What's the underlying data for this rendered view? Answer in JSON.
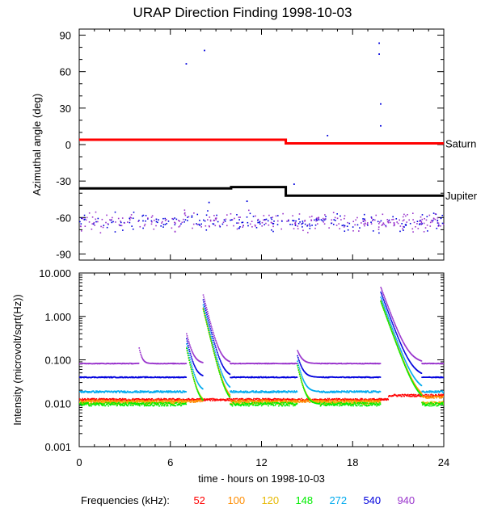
{
  "title": "URAP Direction Finding  1998-10-03",
  "xaxis": {
    "label": "time - hours on 1998-10-03",
    "ticks": [
      0,
      6,
      12,
      18,
      24
    ],
    "range": [
      0,
      24
    ]
  },
  "legend_title": "Frequencies (kHz):",
  "frequencies": [
    {
      "label": "52",
      "color": "#ff0000"
    },
    {
      "label": "100",
      "color": "#ff8c00"
    },
    {
      "label": "120",
      "color": "#e6b800"
    },
    {
      "label": "148",
      "color": "#00ee00"
    },
    {
      "label": "272",
      "color": "#00aaee"
    },
    {
      "label": "540",
      "color": "#0000dd"
    },
    {
      "label": "940",
      "color": "#9933cc"
    }
  ],
  "chart_data": [
    {
      "type": "scatter",
      "ylabel": "Azimuthal angle (deg)",
      "ylim": [
        -95,
        95
      ],
      "yticks": [
        90,
        60,
        30,
        0,
        -30,
        -60,
        -90
      ],
      "reference_lines": [
        {
          "name": "Saturn",
          "color": "#ff0000",
          "segments": [
            [
              0,
              13.6,
              4
            ],
            [
              13.6,
              24,
              1
            ]
          ]
        },
        {
          "name": "Jupiter",
          "color": "#000000",
          "segments": [
            [
              0,
              10,
              -36
            ],
            [
              10,
              13.6,
              -35
            ],
            [
              13.6,
              24,
              -42
            ]
          ]
        }
      ],
      "scatter_band": {
        "center": -63,
        "spread": 11,
        "n": 480
      },
      "outliers": [
        {
          "x": 7.0,
          "y": 67
        },
        {
          "x": 8.2,
          "y": 78
        },
        {
          "x": 16.3,
          "y": 8
        },
        {
          "x": 19.7,
          "y": 84
        },
        {
          "x": 19.7,
          "y": 75
        },
        {
          "x": 19.8,
          "y": 34
        },
        {
          "x": 19.8,
          "y": 16
        },
        {
          "x": 11.0,
          "y": -46
        },
        {
          "x": 8.5,
          "y": -47
        },
        {
          "x": 14.1,
          "y": -32
        }
      ]
    },
    {
      "type": "line",
      "ylabel": "Intensity (microvolt/sqrt(Hz))",
      "yscale": "log",
      "ylim": [
        0.001,
        10
      ],
      "yticks": [
        10,
        1,
        0.1,
        0.01,
        0.001
      ],
      "ytick_labels": [
        "10.000",
        "1.000",
        "0.100",
        "0.010",
        "0.001"
      ],
      "series": [
        {
          "name": "52",
          "baseline": 0.0125,
          "noise": 0.05
        },
        {
          "name": "100",
          "baseline": 0.0115,
          "noise": 0.06
        },
        {
          "name": "120",
          "baseline": 0.0105,
          "noise": 0.07
        },
        {
          "name": "148",
          "baseline": 0.0098,
          "noise": 0.08
        },
        {
          "name": "272",
          "baseline": 0.019,
          "noise": 0.04
        },
        {
          "name": "540",
          "baseline": 0.041,
          "noise": 0.02
        },
        {
          "name": "940",
          "baseline": 0.085,
          "noise": 0.015
        }
      ],
      "bursts": [
        {
          "t": 3.9,
          "peak": 0.2,
          "width": 0.15,
          "series": [
            "940"
          ]
        },
        {
          "t": 7.0,
          "peak": 0.45,
          "width": 0.25,
          "series": [
            "940",
            "540",
            "272",
            "148",
            "120"
          ]
        },
        {
          "t": 8.1,
          "peak": 3.5,
          "width": 0.3,
          "series": [
            "940",
            "540",
            "272",
            "148",
            "120",
            "100"
          ]
        },
        {
          "t": 14.3,
          "peak": 0.18,
          "width": 0.25,
          "series": [
            "940",
            "540",
            "272",
            "148",
            "120"
          ]
        },
        {
          "t": 19.8,
          "peak": 5.0,
          "width": 0.45,
          "series": [
            "940",
            "540",
            "272",
            "148",
            "120",
            "100"
          ]
        },
        {
          "t": 22.2,
          "peak": 0.05,
          "width": 0.15,
          "series": [
            "540"
          ]
        }
      ]
    }
  ]
}
